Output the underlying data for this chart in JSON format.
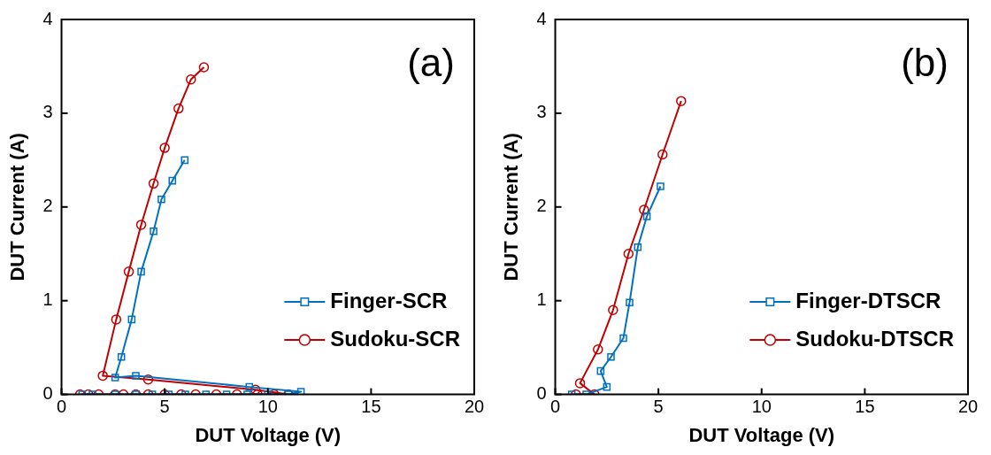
{
  "chart_data": [
    {
      "type": "line",
      "xlabel": "DUT Voltage (V)",
      "ylabel": "DUT Current (A)",
      "annotations": [
        "(a)"
      ],
      "xlim": [
        0,
        20
      ],
      "xticks": [
        0,
        5,
        10,
        15,
        20
      ],
      "ylim": [
        0,
        4
      ],
      "yticks": [
        0,
        1,
        2,
        3,
        4
      ],
      "grid": false,
      "legend": "bottom right",
      "line_style": "solid",
      "series": [
        {
          "name": "Finger-SCR",
          "color": "#0070c0",
          "marker": "square",
          "x": [
            1.0,
            1.5,
            2.6,
            3.6,
            4.4,
            5.2,
            6.0,
            7.0,
            8.0,
            9.0,
            10.0,
            11.0,
            11.6,
            9.1,
            3.6,
            2.6,
            2.9,
            3.4,
            3.86,
            4.46,
            4.84,
            5.37,
            5.97
          ],
          "values": [
            0,
            0,
            0,
            0,
            0,
            0,
            0,
            0,
            0,
            0,
            0,
            0,
            0.03,
            0.08,
            0.2,
            0.18,
            0.4,
            0.8,
            1.31,
            1.74,
            2.08,
            2.28,
            2.5
          ]
        },
        {
          "name": "Sudoku-SCR",
          "color": "#c00000",
          "marker": "circle",
          "x": [
            0.9,
            1.3,
            1.8,
            2.6,
            3.0,
            3.6,
            4.2,
            5.0,
            5.8,
            6.5,
            7.5,
            8.5,
            9.5,
            10.3,
            11.0,
            9.4,
            4.2,
            2.0,
            2.65,
            3.26,
            3.86,
            4.46,
            5.0,
            5.67,
            6.27,
            6.9
          ],
          "values": [
            0,
            0,
            0,
            0,
            0,
            0,
            0,
            0,
            0,
            0,
            0,
            0,
            0,
            0,
            0,
            0.05,
            0.16,
            0.2,
            0.8,
            1.31,
            1.81,
            2.25,
            2.63,
            3.05,
            3.36,
            3.49
          ]
        }
      ]
    },
    {
      "type": "line",
      "xlabel": "DUT Voltage (V)",
      "ylabel": "DUT Current (A)",
      "annotations": [
        "(b)"
      ],
      "xlim": [
        0,
        20
      ],
      "xticks": [
        0,
        5,
        10,
        15,
        20
      ],
      "ylim": [
        0,
        4
      ],
      "yticks": [
        0,
        1,
        2,
        3,
        4
      ],
      "grid": false,
      "legend": "bottom right",
      "line_style": "solid",
      "series": [
        {
          "name": "Finger-DTSCR",
          "color": "#0070c0",
          "marker": "square",
          "x": [
            0.8,
            1.5,
            2.5,
            2.2,
            2.7,
            3.3,
            3.6,
            4.0,
            4.44,
            5.1
          ],
          "values": [
            0,
            0,
            0.08,
            0.25,
            0.4,
            0.6,
            0.98,
            1.57,
            1.9,
            2.22
          ]
        },
        {
          "name": "Sudoku-DTSCR",
          "color": "#c00000",
          "marker": "circle",
          "x": [
            1.0,
            1.9,
            1.2,
            2.07,
            2.8,
            3.55,
            4.3,
            5.2,
            6.1
          ],
          "values": [
            0,
            0,
            0.12,
            0.48,
            0.9,
            1.5,
            1.97,
            2.56,
            3.13
          ]
        }
      ]
    }
  ]
}
